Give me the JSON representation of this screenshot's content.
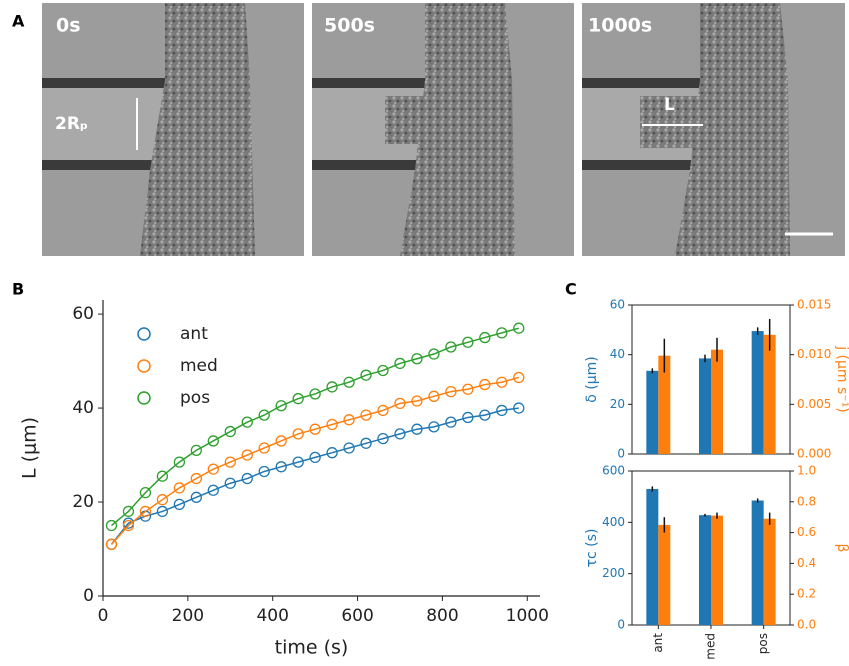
{
  "panel_labels": [
    "A",
    "B",
    "C"
  ],
  "images": [
    {
      "label": "0s"
    },
    {
      "label": "500s"
    },
    {
      "label": "1000s"
    }
  ],
  "annotations": {
    "diameter": "2Rₚ",
    "length": "L"
  },
  "chart_data": [
    {
      "type": "line",
      "xlabel": "time (s)",
      "ylabel": "L (μm)",
      "x": [
        20,
        60,
        100,
        140,
        180,
        220,
        260,
        300,
        340,
        380,
        420,
        460,
        500,
        540,
        580,
        620,
        660,
        700,
        740,
        780,
        820,
        860,
        900,
        940,
        980
      ],
      "series": [
        {
          "name": "ant",
          "color": "#1f77b4",
          "values": [
            11,
            15.5,
            17,
            18,
            19.5,
            21,
            22.5,
            24,
            25,
            26.5,
            27.5,
            28.5,
            29.5,
            30.5,
            31.5,
            32.5,
            33.5,
            34.5,
            35.5,
            36,
            37,
            38,
            38.5,
            39.5,
            40
          ]
        },
        {
          "name": "med",
          "color": "#ff7f0e",
          "values": [
            11,
            15,
            18,
            20.5,
            23,
            25,
            27,
            28.5,
            30,
            31.5,
            33,
            34.5,
            35.5,
            36.5,
            37.5,
            38.5,
            39.5,
            41,
            41.5,
            42.5,
            43.5,
            44,
            45,
            45.5,
            46.5
          ]
        },
        {
          "name": "pos",
          "color": "#2ca02c",
          "values": [
            15,
            18,
            22,
            25.5,
            28.5,
            31,
            33,
            35,
            37,
            38.5,
            40.5,
            42,
            43,
            44.5,
            45.5,
            47,
            48,
            49.5,
            50.5,
            51.5,
            53,
            54,
            55,
            56,
            57
          ]
        }
      ],
      "xlim": [
        0,
        1030
      ],
      "xticks": [
        0,
        200,
        400,
        600,
        800,
        1000
      ],
      "ylim": [
        0,
        63
      ],
      "yticks": [
        0,
        20,
        40,
        60
      ]
    },
    {
      "type": "bar",
      "ylabel": "δ (μm)",
      "y2label": "j (μm s⁻¹)",
      "categories": [
        "ant",
        "med",
        "pos"
      ],
      "series": [
        {
          "color": "#1f77b4",
          "values": [
            33.5,
            38.5,
            49.5
          ],
          "errors": [
            1,
            1.5,
            1.5
          ]
        },
        {
          "color": "#ff7f0e",
          "axis": "y2",
          "values": [
            0.0099,
            0.0105,
            0.012
          ],
          "errors": [
            0.0017,
            0.0012,
            0.0016
          ]
        }
      ],
      "ylim": [
        0,
        60
      ],
      "yticks": [
        0,
        20,
        40,
        60
      ],
      "y2lim": [
        0,
        0.015
      ],
      "y2ticks": [
        {
          "value": 0,
          "label": "0.000"
        },
        0.005,
        {
          "value": 0.01,
          "label": "0.010"
        },
        0.015
      ]
    },
    {
      "type": "bar",
      "ylabel": "τc (s)",
      "y2label": "β",
      "categories": [
        "ant",
        "med",
        "pos"
      ],
      "series": [
        {
          "color": "#1f77b4",
          "values": [
            530,
            428,
            485
          ],
          "errors": [
            10,
            5,
            8
          ]
        },
        {
          "color": "#ff7f0e",
          "axis": "y2",
          "values": [
            0.65,
            0.71,
            0.69
          ],
          "errors": [
            0.05,
            0.02,
            0.04
          ]
        }
      ],
      "ylim": [
        0,
        600
      ],
      "yticks": [
        0,
        200,
        400,
        600
      ],
      "y2lim": [
        0,
        1
      ],
      "y2ticks": [
        {
          "value": 0,
          "label": "0.0"
        },
        0.2,
        0.4,
        0.6,
        0.8,
        {
          "value": 1,
          "label": "1.0"
        }
      ]
    }
  ]
}
